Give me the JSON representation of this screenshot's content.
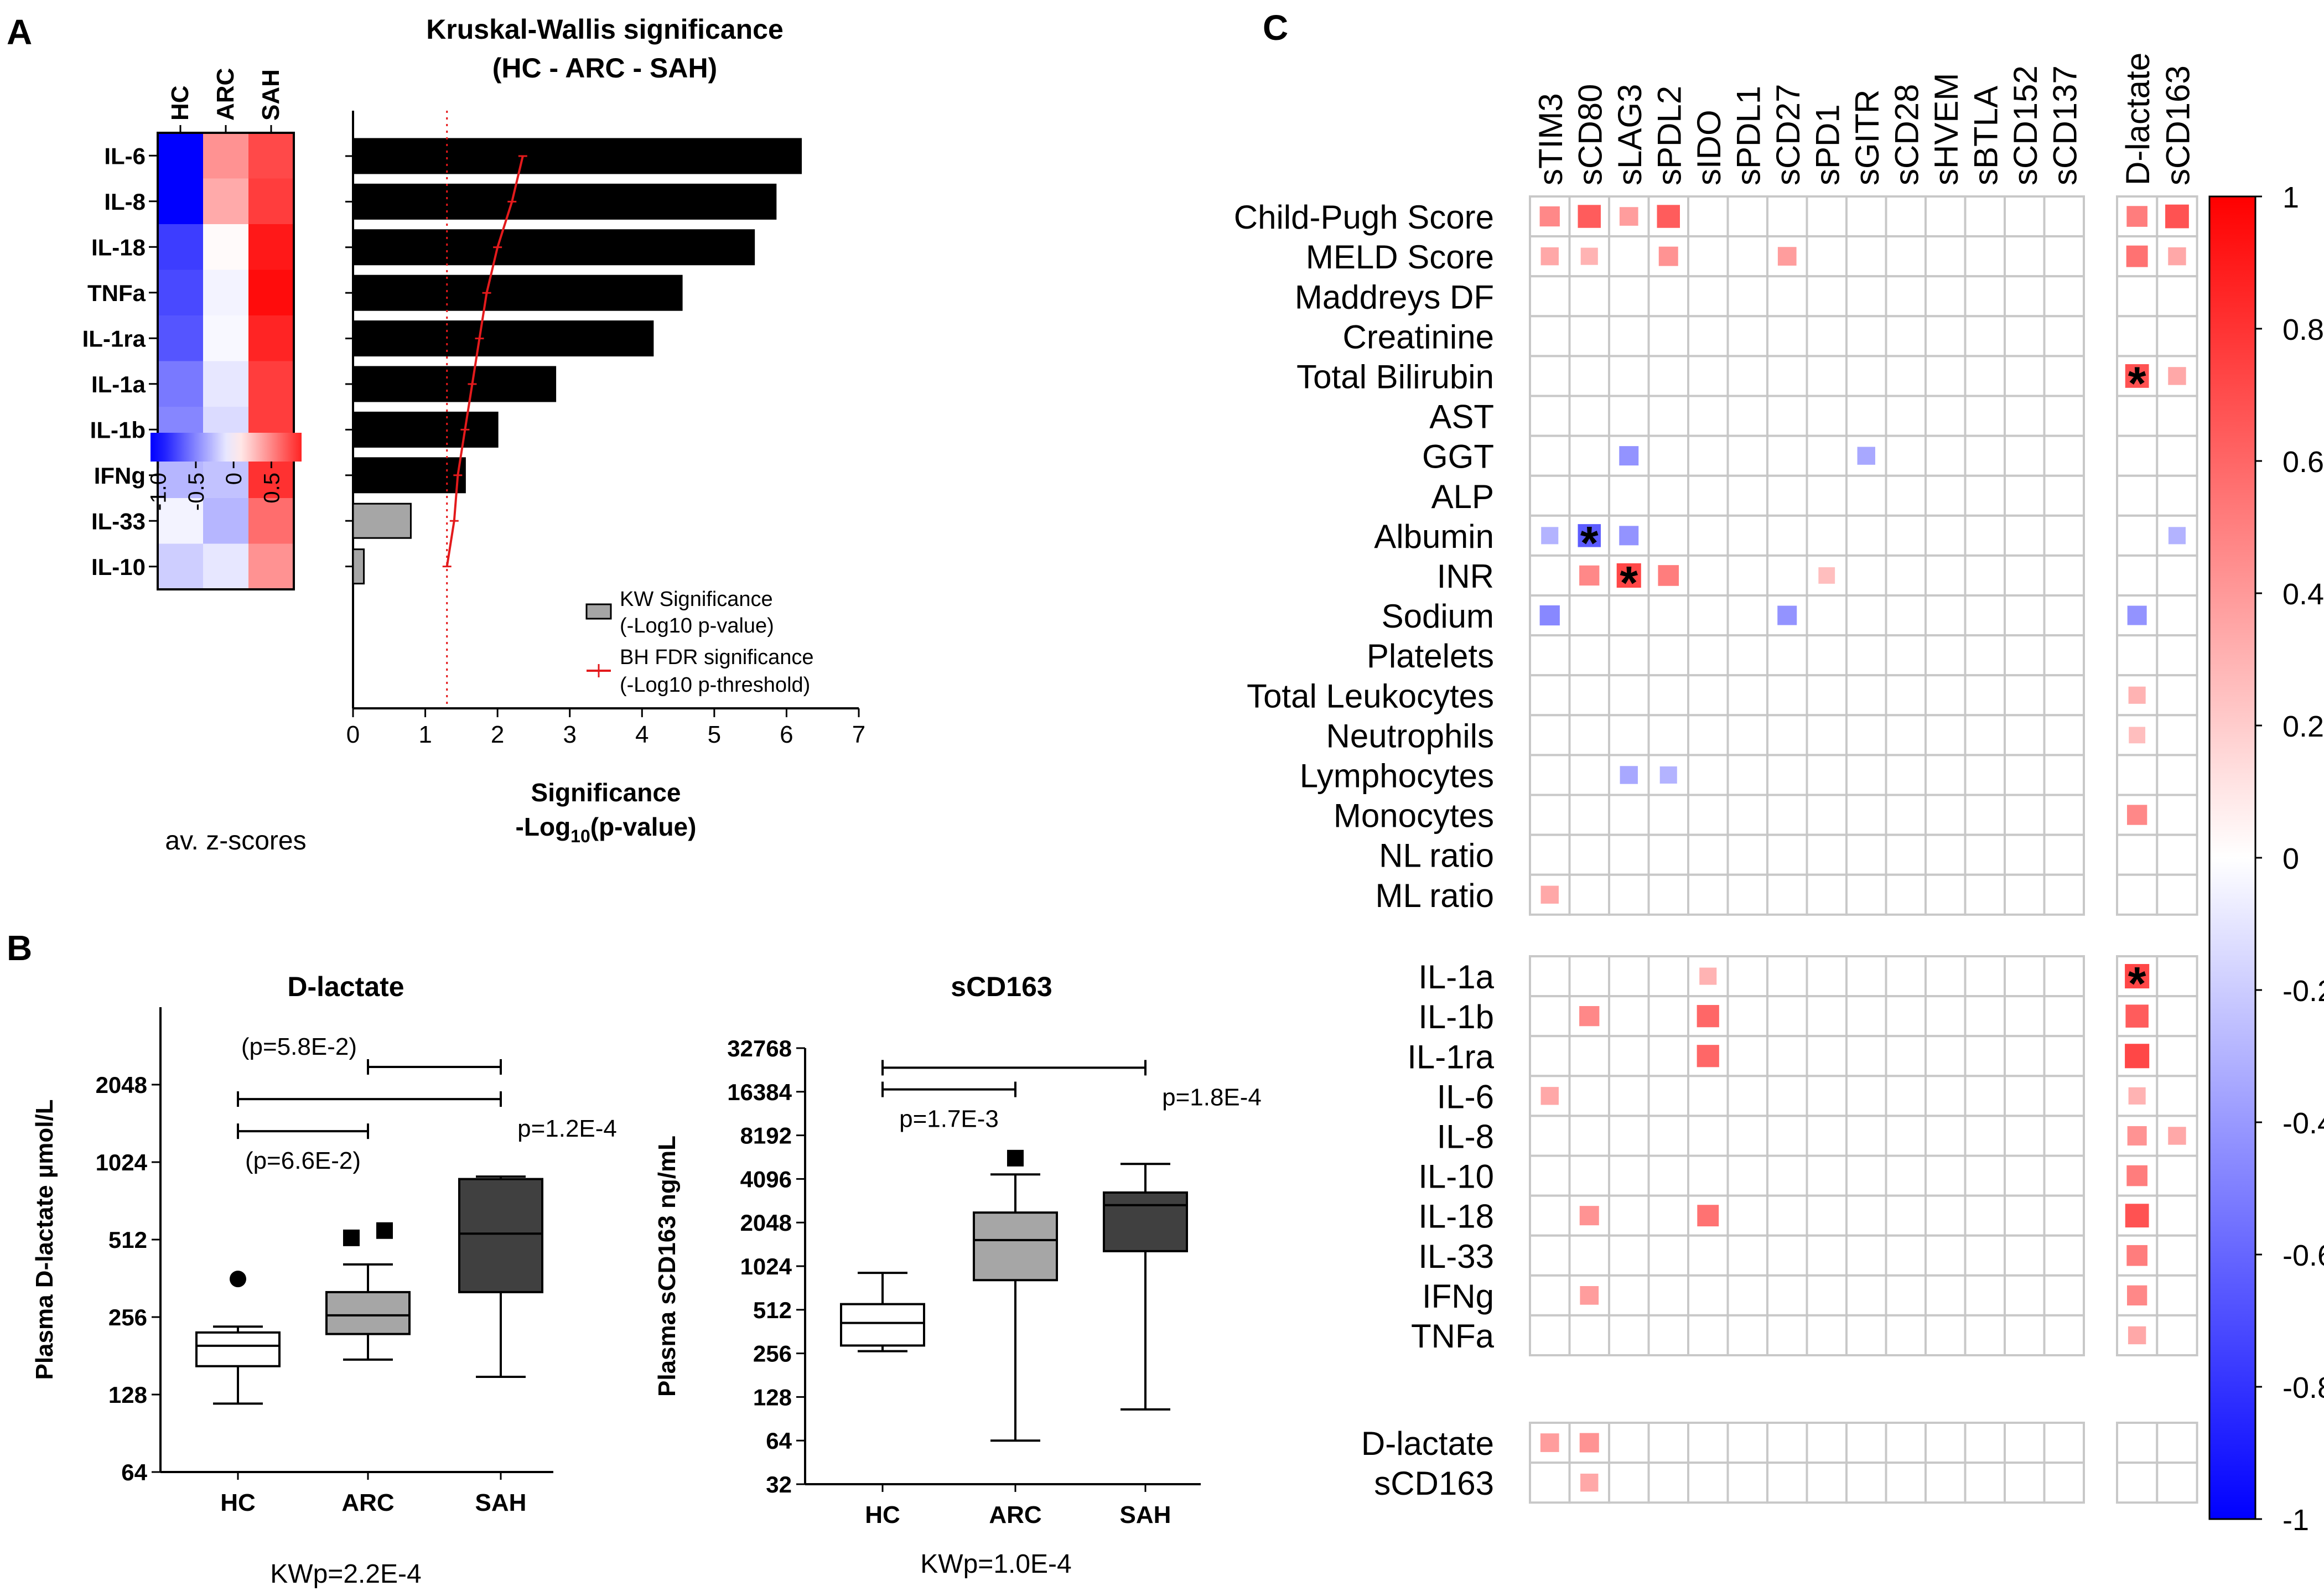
{
  "colors": {
    "negative": "#0000ff",
    "positive": "#ff0000",
    "bar": "#000000",
    "bar_nonsig": "#a6a6a6",
    "threshold": "#e31a1c",
    "grid": "#c8c8c8",
    "box_hc": "#ffffff",
    "box_arc": "#a6a6a6",
    "box_sah": "#404040"
  },
  "panel_labels": {
    "a": "A",
    "b": "B",
    "c": "C"
  },
  "chart_data": [
    {
      "id": "heatmap_a",
      "type": "heatmap",
      "title": "",
      "columns": [
        "HC",
        "ARC",
        "SAH"
      ],
      "rows": [
        "IL-6",
        "IL-8",
        "IL-18",
        "TNFa",
        "IL-1ra",
        "IL-1a",
        "IL-1b",
        "IFNg",
        "IL-33",
        "IL-10"
      ],
      "values": [
        [
          -1.05,
          0.45,
          0.75
        ],
        [
          -1.05,
          0.35,
          0.8
        ],
        [
          -0.8,
          0.02,
          0.95
        ],
        [
          -0.75,
          -0.05,
          1.0
        ],
        [
          -0.7,
          -0.03,
          0.9
        ],
        [
          -0.55,
          -0.1,
          0.8
        ],
        [
          -0.5,
          -0.15,
          0.8
        ],
        [
          -0.3,
          -0.25,
          0.85
        ],
        [
          -0.05,
          -0.3,
          0.6
        ],
        [
          -0.2,
          -0.1,
          0.45
        ]
      ],
      "colorbar": {
        "ticks": [
          -1.0,
          -0.5,
          0,
          0.5
        ],
        "tick_labels": [
          "-1.0",
          "-0.5",
          "0",
          "0.5"
        ],
        "label": "av. z-scores",
        "range": [
          -1.1,
          0.9
        ]
      }
    },
    {
      "id": "bar_a",
      "type": "bar",
      "orientation": "horizontal",
      "title": "Kruskal-Wallis significance",
      "subtitle": "(HC - ARC - SAH)",
      "xlabel": "Significance",
      "xlabel2_parts": [
        "-Log",
        "10",
        "(p-value)"
      ],
      "xlim": [
        0,
        7
      ],
      "xticks": [
        0,
        1,
        2,
        3,
        4,
        5,
        6,
        7
      ],
      "categories": [
        "IL-6",
        "IL-8",
        "IL-18",
        "TNFa",
        "IL-1ra",
        "IL-1a",
        "IL-1b",
        "IFNg",
        "IL-33",
        "IL-10"
      ],
      "values": [
        6.2,
        5.85,
        5.55,
        4.55,
        4.15,
        2.8,
        2.0,
        1.55,
        0.8,
        0.15
      ],
      "significant": [
        true,
        true,
        true,
        true,
        true,
        true,
        true,
        true,
        false,
        false
      ],
      "bh_threshold": [
        2.35,
        2.2,
        2.0,
        1.85,
        1.75,
        1.65,
        1.55,
        1.45,
        1.4,
        1.3
      ],
      "reference_line": 1.3,
      "legend": [
        {
          "label": "KW Significance",
          "label2": "(-Log10 p-value)"
        },
        {
          "label": "BH FDR significance",
          "label2": "(-Log10 p-threshold)"
        }
      ]
    },
    {
      "id": "box_dlactate",
      "type": "box",
      "title": "D-lactate",
      "ylabel": "Plasma D-lactate µmol/L",
      "yscale": "log2",
      "ylim": [
        64,
        4096
      ],
      "yticks": [
        64,
        128,
        256,
        512,
        1024,
        2048
      ],
      "categories": [
        "HC",
        "ARC",
        "SAH"
      ],
      "groups": [
        {
          "name": "HC",
          "whisker_low": 118,
          "q1": 165,
          "median": 198,
          "q3": 223,
          "whisker_high": 235,
          "outliers": [
            360
          ],
          "outlier_marker": "circle"
        },
        {
          "name": "ARC",
          "whisker_low": 175,
          "q1": 220,
          "median": 260,
          "q3": 320,
          "whisker_high": 410,
          "outliers": [
            520,
            555
          ],
          "outlier_marker": "square"
        },
        {
          "name": "SAH",
          "whisker_low": 150,
          "q1": 320,
          "median": 540,
          "q3": 880,
          "whisker_high": 900,
          "outliers": [],
          "outlier_marker": "none"
        }
      ],
      "brackets": [
        {
          "from": "ARC",
          "to": "SAH",
          "y": 2400,
          "label": "(p=5.8E-2)",
          "label_pos": "above-left"
        },
        {
          "from": "HC",
          "to": "SAH",
          "y": 1800,
          "label": "p=1.2E-4",
          "label_pos": "below-right"
        },
        {
          "from": "HC",
          "to": "ARC",
          "y": 1350,
          "label": "(p=6.6E-2)",
          "label_pos": "below-center"
        }
      ],
      "footer": "KWp=2.2E-4"
    },
    {
      "id": "box_scd163",
      "type": "box",
      "title": "sCD163",
      "ylabel": "Plasma sCD163 ng/mL",
      "yscale": "log2",
      "ylim": [
        32,
        32768
      ],
      "yticks": [
        32,
        64,
        128,
        256,
        512,
        1024,
        2048,
        4096,
        8192,
        16384,
        32768
      ],
      "categories": [
        "HC",
        "ARC",
        "SAH"
      ],
      "groups": [
        {
          "name": "HC",
          "whisker_low": 265,
          "q1": 290,
          "median": 415,
          "q3": 560,
          "whisker_high": 920,
          "outliers": [],
          "outlier_marker": "none"
        },
        {
          "name": "ARC",
          "whisker_low": 64,
          "q1": 820,
          "median": 1550,
          "q3": 2400,
          "whisker_high": 4400,
          "outliers": [
            5700
          ],
          "outlier_marker": "square"
        },
        {
          "name": "SAH",
          "whisker_low": 105,
          "q1": 1300,
          "median": 2700,
          "q3": 3300,
          "whisker_high": 5200,
          "outliers": [],
          "outlier_marker": "none"
        }
      ],
      "brackets": [
        {
          "from": "HC",
          "to": "SAH",
          "y": 24000,
          "label": "p=1.8E-4",
          "label_pos": "below-right"
        },
        {
          "from": "HC",
          "to": "ARC",
          "y": 17000,
          "label": "p=1.7E-3",
          "label_pos": "below-center"
        }
      ],
      "footer": "KWp=1.0E-4"
    },
    {
      "id": "corr_c",
      "type": "heatmap",
      "title": "",
      "columns_main": [
        "sTIM3",
        "sCD80",
        "sLAG3",
        "sPDL2",
        "sIDO",
        "sPDL1",
        "sCD27",
        "sPD1",
        "sGITR",
        "sCD28",
        "sHVEM",
        "sBTLA",
        "sCD152",
        "sCD137"
      ],
      "columns_side": [
        "D-lactate",
        "sCD163"
      ],
      "row_groups": [
        [
          "Child-Pugh Score",
          "MELD Score",
          "Maddreys DF",
          "Creatinine",
          "Total Bilirubin",
          "AST",
          "GGT",
          "ALP",
          "Albumin",
          "INR",
          "Sodium",
          "Platelets",
          "Total Leukocytes",
          "Neutrophils",
          "Lymphocytes",
          "Monocytes",
          "NL ratio",
          "ML ratio"
        ],
        [
          "IL-1a",
          "IL-1b",
          "IL-1ra",
          "IL-6",
          "IL-8",
          "IL-10",
          "IL-18",
          "IL-33",
          "IFNg",
          "TNFa"
        ],
        [
          "D-lactate",
          "sCD163"
        ]
      ],
      "cells": [
        {
          "row": "Child-Pugh Score",
          "col": "sTIM3",
          "r": 0.55
        },
        {
          "row": "Child-Pugh Score",
          "col": "sCD80",
          "r": 0.75
        },
        {
          "row": "Child-Pugh Score",
          "col": "sLAG3",
          "r": 0.45
        },
        {
          "row": "Child-Pugh Score",
          "col": "sPDL2",
          "r": 0.75
        },
        {
          "row": "Child-Pugh Score",
          "col": "D-lactate",
          "r": 0.6
        },
        {
          "row": "Child-Pugh Score",
          "col": "sCD163",
          "r": 0.8
        },
        {
          "row": "MELD Score",
          "col": "sTIM3",
          "r": 0.4
        },
        {
          "row": "MELD Score",
          "col": "sCD80",
          "r": 0.35
        },
        {
          "row": "MELD Score",
          "col": "sPDL2",
          "r": 0.5
        },
        {
          "row": "MELD Score",
          "col": "sCD27",
          "r": 0.45
        },
        {
          "row": "MELD Score",
          "col": "D-lactate",
          "r": 0.65
        },
        {
          "row": "MELD Score",
          "col": "sCD163",
          "r": 0.4
        },
        {
          "row": "Total Bilirubin",
          "col": "D-lactate",
          "r": 0.8,
          "star": true
        },
        {
          "row": "Total Bilirubin",
          "col": "sCD163",
          "r": 0.4
        },
        {
          "row": "GGT",
          "col": "sLAG3",
          "r": -0.5
        },
        {
          "row": "GGT",
          "col": "sGITR",
          "r": -0.4
        },
        {
          "row": "Albumin",
          "col": "sTIM3",
          "r": -0.35
        },
        {
          "row": "Albumin",
          "col": "sCD80",
          "r": -0.75,
          "star": true
        },
        {
          "row": "Albumin",
          "col": "sLAG3",
          "r": -0.5
        },
        {
          "row": "Albumin",
          "col": "sCD163",
          "r": -0.35
        },
        {
          "row": "INR",
          "col": "sCD80",
          "r": 0.55
        },
        {
          "row": "INR",
          "col": "sLAG3",
          "r": 0.85,
          "star": true
        },
        {
          "row": "INR",
          "col": "sPDL2",
          "r": 0.6
        },
        {
          "row": "INR",
          "col": "sPD1",
          "r": 0.3
        },
        {
          "row": "Sodium",
          "col": "sTIM3",
          "r": -0.55
        },
        {
          "row": "Sodium",
          "col": "sCD27",
          "r": -0.5
        },
        {
          "row": "Sodium",
          "col": "D-lactate",
          "r": -0.5
        },
        {
          "row": "Total Leukocytes",
          "col": "D-lactate",
          "r": 0.35
        },
        {
          "row": "Neutrophils",
          "col": "D-lactate",
          "r": 0.3
        },
        {
          "row": "Lymphocytes",
          "col": "sLAG3",
          "r": -0.4
        },
        {
          "row": "Lymphocytes",
          "col": "sPDL2",
          "r": -0.35
        },
        {
          "row": "Monocytes",
          "col": "D-lactate",
          "r": 0.55
        },
        {
          "row": "ML ratio",
          "col": "sTIM3",
          "r": 0.4
        },
        {
          "row": "IL-1a",
          "col": "sIDO",
          "r": 0.35
        },
        {
          "row": "IL-1a",
          "col": "D-lactate",
          "r": 0.85,
          "star": true
        },
        {
          "row": "IL-1b",
          "col": "sCD80",
          "r": 0.55
        },
        {
          "row": "IL-1b",
          "col": "sIDO",
          "r": 0.7
        },
        {
          "row": "IL-1b",
          "col": "D-lactate",
          "r": 0.75
        },
        {
          "row": "IL-1ra",
          "col": "sIDO",
          "r": 0.7
        },
        {
          "row": "IL-1ra",
          "col": "D-lactate",
          "r": 0.85
        },
        {
          "row": "IL-6",
          "col": "sTIM3",
          "r": 0.4
        },
        {
          "row": "IL-6",
          "col": "D-lactate",
          "r": 0.35
        },
        {
          "row": "IL-8",
          "col": "D-lactate",
          "r": 0.5
        },
        {
          "row": "IL-8",
          "col": "sCD163",
          "r": 0.4
        },
        {
          "row": "IL-10",
          "col": "D-lactate",
          "r": 0.6
        },
        {
          "row": "IL-18",
          "col": "sCD80",
          "r": 0.5
        },
        {
          "row": "IL-18",
          "col": "sIDO",
          "r": 0.65
        },
        {
          "row": "IL-18",
          "col": "D-lactate",
          "r": 0.8
        },
        {
          "row": "IL-33",
          "col": "D-lactate",
          "r": 0.6
        },
        {
          "row": "IFNg",
          "col": "sCD80",
          "r": 0.45
        },
        {
          "row": "IFNg",
          "col": "D-lactate",
          "r": 0.55
        },
        {
          "row": "TNFa",
          "col": "D-lactate",
          "r": 0.4
        },
        {
          "row": "D-lactate",
          "col": "sTIM3",
          "r": 0.45
        },
        {
          "row": "D-lactate",
          "col": "sCD80",
          "r": 0.5
        },
        {
          "row": "sCD163",
          "col": "sCD80",
          "r": 0.4
        }
      ],
      "colorbar": {
        "range": [
          -1,
          1
        ],
        "ticks": [
          1,
          0.8,
          0.6,
          0.4,
          0.2,
          0,
          -0.2,
          -0.4,
          -0.6,
          -0.8,
          -1
        ],
        "tick_labels": [
          "1",
          "0.8",
          "0.6",
          "0.4",
          "0.2",
          "0",
          "-0.2",
          "-0.4",
          "-0.6",
          "-0.8",
          "-1"
        ]
      }
    }
  ]
}
